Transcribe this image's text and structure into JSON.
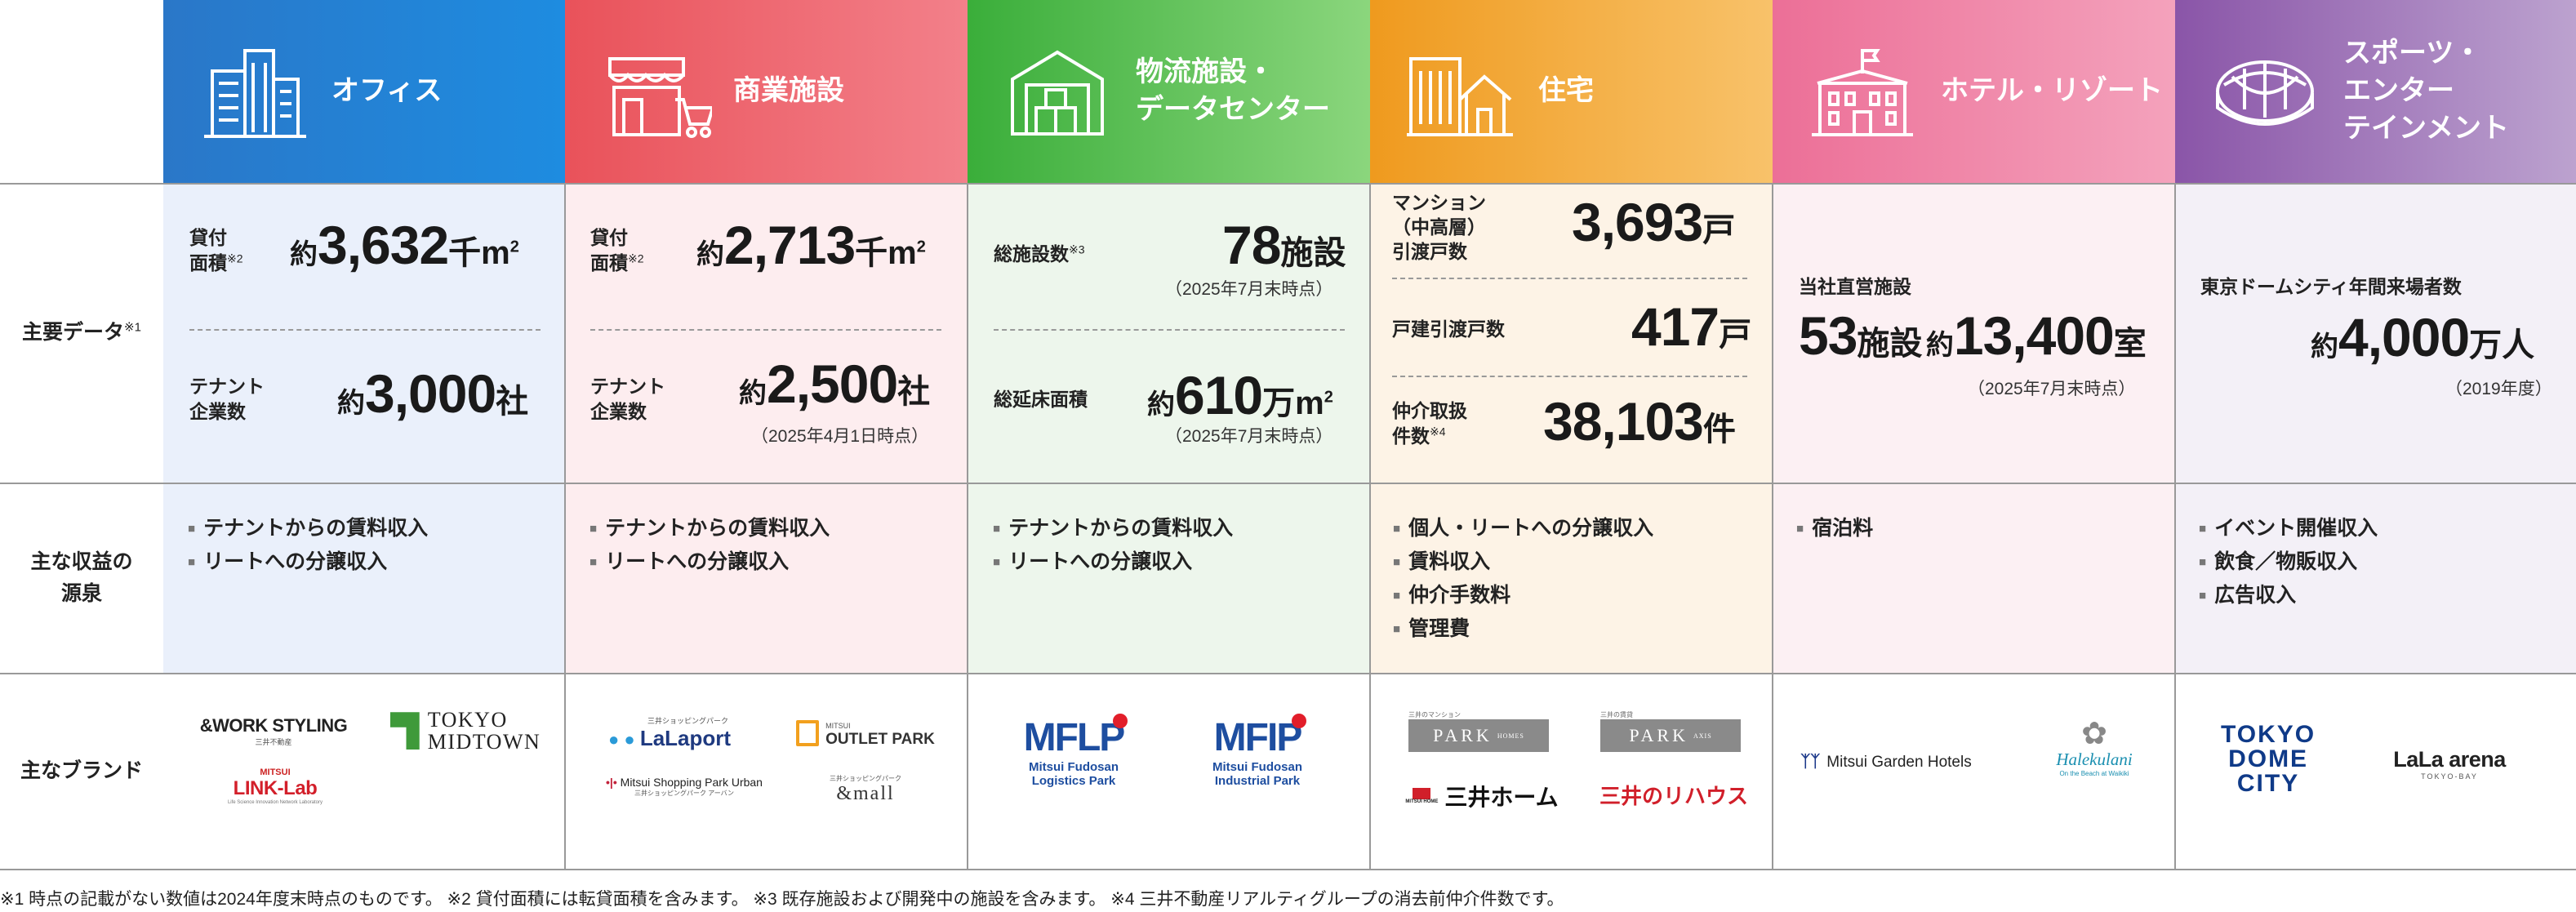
{
  "row_labels": {
    "main_data": "主要データ",
    "main_data_note": "※1",
    "revenue": "主な収益の源泉",
    "revenue_line1": "主な収益の",
    "revenue_line2": "源泉",
    "brands": "主なブランド"
  },
  "columns": [
    {
      "title_lines": [
        "オフィス"
      ],
      "color_from": "#2a77c8",
      "color_to": "#1e8ce0",
      "bg": "#eaf0fb"
    },
    {
      "title_lines": [
        "商業施設"
      ],
      "color_from": "#e9525a",
      "color_to": "#f3808a",
      "bg": "#fdedef"
    },
    {
      "title_lines": [
        "物流施設・",
        "データセンター"
      ],
      "color_from": "#3aae3a",
      "color_to": "#8bd67d",
      "bg": "#edf6ec"
    },
    {
      "title_lines": [
        "住宅"
      ],
      "color_from": "#ef9a1e",
      "color_to": "#f8c26a",
      "bg": "#fdf3e6"
    },
    {
      "title_lines": [
        "ホテル・リゾート"
      ],
      "color_from": "#ec6f97",
      "color_to": "#f4a2bc",
      "bg": "#fcf0f3"
    },
    {
      "title_lines": [
        "スポーツ・",
        "エンター",
        "テインメント"
      ],
      "color_from": "#8a55a8",
      "color_to": "#bca2cf",
      "bg": "#f3f0f7"
    }
  ],
  "office": {
    "area_label1": "貸付",
    "area_label2": "面積",
    "area_note": "※2",
    "area_pre": "約",
    "area_num": "3,632",
    "area_unit": "千m",
    "area_sup": "2",
    "tenant_label1": "テナント",
    "tenant_label2": "企業数",
    "tenant_pre": "約",
    "tenant_num": "3,000",
    "tenant_unit": "社",
    "revenue": [
      "テナントからの賃料収入",
      "リートへの分譲収入"
    ]
  },
  "retail": {
    "area_label1": "貸付",
    "area_label2": "面積",
    "area_note": "※2",
    "area_pre": "約",
    "area_num": "2,713",
    "area_unit": "千m",
    "area_sup": "2",
    "tenant_label1": "テナント",
    "tenant_label2": "企業数",
    "tenant_pre": "約",
    "tenant_num": "2,500",
    "tenant_unit": "社",
    "tenant_note": "（2025年4月1日時点）",
    "revenue": [
      "テナントからの賃料収入",
      "リートへの分譲収入"
    ]
  },
  "logistics": {
    "fac_label": "総施設数",
    "fac_note": "※3",
    "fac_num": "78",
    "fac_unit": "施設",
    "fac_date": "（2025年7月末時点）",
    "floor_label": "総延床面積",
    "floor_pre": "約",
    "floor_num": "610",
    "floor_unit": "万m",
    "floor_sup": "2",
    "floor_date": "（2025年7月末時点）",
    "revenue": [
      "テナントからの賃料収入",
      "リートへの分譲収入"
    ]
  },
  "housing": {
    "mansion_l1": "マンション",
    "mansion_l2": "（中高層）",
    "mansion_l3": "引渡戸数",
    "mansion_num": "3,693",
    "mansion_unit": "戸",
    "detached_label": "戸建引渡戸数",
    "detached_num": "417",
    "detached_unit": "戸",
    "broker_l1": "仲介取扱",
    "broker_l2": "件数",
    "broker_note": "※4",
    "broker_num": "38,103",
    "broker_unit": "件",
    "revenue": [
      "個人・リートへの分譲収入",
      "賃料収入",
      "仲介手数料",
      "管理費"
    ]
  },
  "hotel": {
    "label": "当社直営施設",
    "fac_num": "53",
    "fac_unit": "施設",
    "room_pre": "約",
    "room_num": "13,400",
    "room_unit": "室",
    "date": "（2025年7月末時点）",
    "revenue": [
      "宿泊料"
    ]
  },
  "sports": {
    "label": "東京ドームシティ年間来場者数",
    "pre": "約",
    "num": "4,000",
    "unit": "万人",
    "date": "（2019年度）",
    "revenue": [
      "イベント開催収入",
      "飲食／物販収入",
      "広告収入"
    ]
  },
  "brands": {
    "office": {
      "work_styling": "&WORK STYLING",
      "work_styling_sub": "三井不動産",
      "tokyo": "TOKYO",
      "midtown": "MIDTOWN",
      "mitsui": "MITSUI",
      "link_lab": "LINK-Lab",
      "link_lab_sub": "Life Science Innovation Network Laboratory"
    },
    "retail": {
      "lalaport_sub": "三井ショッピングパーク",
      "lalaport": "LaLaport",
      "outlet_top": "MITSUI",
      "outlet": "OUTLET PARK",
      "urban": "Mitsui Shopping Park Urban",
      "urban_sub": "三井ショッピングパーク アーバン",
      "mall_sub": "三井ショッピングパーク",
      "mall": "&mall"
    },
    "logistics": {
      "mflp": "MFLP",
      "mflp_l1": "Mitsui Fudosan",
      "mflp_l2": "Logistics Park",
      "mfip": "MFIP",
      "mfip_l1": "Mitsui Fudosan",
      "mfip_l2": "Industrial Park"
    },
    "housing": {
      "park_homes_sub": "三井のマンション",
      "park_homes": "PARK",
      "park_homes_tag": "HOMES",
      "park_axis_sub": "三井の賃貸",
      "park_axis": "PARK",
      "park_axis_tag": "AXIS",
      "mitsui_home_small": "MITSUI HOME",
      "mitsui_home": "三井ホーム",
      "rehouse": "三井のリハウス"
    },
    "hotel": {
      "garden": "Mitsui Garden Hotels",
      "halekulani": "Halekulani",
      "halekulani_sub": "On the Beach at Waikiki"
    },
    "sports": {
      "tdc1": "TOKYO",
      "tdc2": "DOME",
      "tdc3": "CITY",
      "lala": "LaLa arena",
      "lala_sub": "TOKYO-BAY"
    }
  },
  "footnote": "※1 時点の記載がない数値は2024年度末時点のものです。 ※2 貸付面積には転貸面積を含みます。 ※3 既存施設および開発中の施設を含みます。 ※4 三井不動産リアルティグループの消去前仲介件数です。"
}
